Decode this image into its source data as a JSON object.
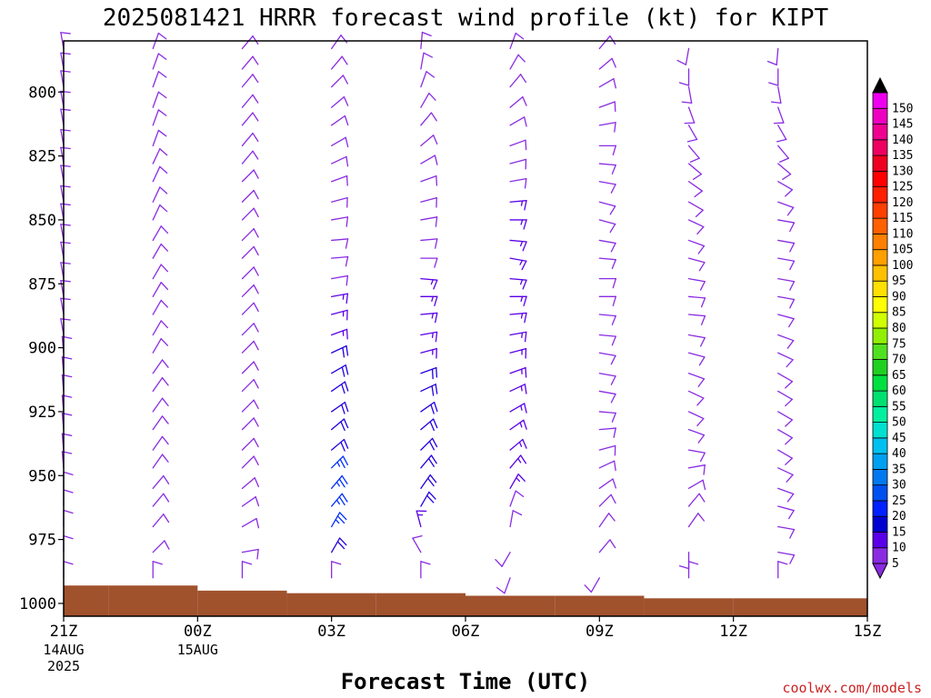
{
  "chart_data": {
    "type": "wind-barb profile",
    "title": "2025081421 HRRR forecast wind profile (kt) for KIPT",
    "xlabel": "Forecast Time (UTC)",
    "credit": "coolwx.com/models",
    "y_axis": {
      "direction": "inverted pressure (hPa)",
      "range": [
        1005,
        780
      ],
      "ticks": [
        800,
        825,
        850,
        875,
        900,
        925,
        950,
        975,
        1000
      ]
    },
    "x_axis": {
      "range_hours": [
        0,
        18
      ],
      "ticks": [
        {
          "hour": 0,
          "label": "21Z",
          "sub": [
            "14AUG",
            "2025"
          ]
        },
        {
          "hour": 3,
          "label": "00Z",
          "sub": [
            "15AUG"
          ]
        },
        {
          "hour": 6,
          "label": "03Z",
          "sub": []
        },
        {
          "hour": 9,
          "label": "06Z",
          "sub": []
        },
        {
          "hour": 12,
          "label": "09Z",
          "sub": []
        },
        {
          "hour": 15,
          "label": "12Z",
          "sub": []
        },
        {
          "hour": 18,
          "label": "15Z",
          "sub": []
        }
      ]
    },
    "levels_hpa": [
      1000,
      990,
      980,
      970,
      962,
      955,
      947,
      940,
      932,
      925,
      917,
      910,
      902,
      895,
      887,
      880,
      873,
      865,
      858,
      850,
      843,
      835,
      828,
      821,
      813,
      806,
      798,
      791,
      783
    ],
    "columns": [
      {
        "hour": 0,
        "surface_hpa": 993,
        "dir": [
          0,
          0,
          0,
          0,
          0,
          0,
          355,
          355,
          355,
          355,
          355,
          355,
          355,
          350,
          350,
          350,
          350,
          350,
          350,
          350,
          350,
          350,
          350,
          350,
          350,
          350,
          350,
          350,
          350
        ],
        "spd": [
          10,
          10,
          10,
          10,
          10,
          10,
          10,
          10,
          10,
          10,
          10,
          10,
          10,
          10,
          10,
          10,
          10,
          10,
          10,
          10,
          10,
          10,
          10,
          10,
          10,
          10,
          10,
          10,
          10
        ]
      },
      {
        "hour": 2,
        "surface_hpa": 993,
        "dir": [
          0,
          0,
          45,
          40,
          40,
          40,
          35,
          35,
          35,
          35,
          35,
          35,
          30,
          30,
          30,
          30,
          30,
          30,
          30,
          25,
          25,
          25,
          25,
          20,
          20,
          20,
          20,
          20,
          20
        ],
        "spd": [
          10,
          10,
          10,
          10,
          10,
          10,
          10,
          10,
          10,
          10,
          10,
          10,
          10,
          10,
          10,
          10,
          10,
          10,
          10,
          10,
          10,
          10,
          10,
          10,
          10,
          10,
          10,
          10,
          10
        ]
      },
      {
        "hour": 4,
        "surface_hpa": 995,
        "dir": [
          0,
          0,
          80,
          60,
          55,
          50,
          45,
          45,
          45,
          45,
          45,
          45,
          45,
          45,
          45,
          45,
          45,
          45,
          45,
          45,
          45,
          45,
          40,
          40,
          40,
          40,
          40,
          40,
          40
        ],
        "spd": [
          10,
          10,
          10,
          10,
          10,
          10,
          10,
          10,
          10,
          10,
          10,
          10,
          10,
          10,
          10,
          10,
          10,
          10,
          10,
          10,
          10,
          10,
          10,
          10,
          10,
          10,
          10,
          10,
          10
        ]
      },
      {
        "hour": 6,
        "surface_hpa": 996,
        "dir": [
          0,
          0,
          30,
          30,
          40,
          40,
          45,
          50,
          50,
          55,
          55,
          60,
          65,
          70,
          75,
          80,
          80,
          85,
          85,
          80,
          75,
          70,
          65,
          60,
          55,
          50,
          45,
          40,
          35
        ],
        "spd": [
          10,
          10,
          20,
          25,
          25,
          25,
          25,
          20,
          20,
          20,
          20,
          20,
          20,
          15,
          15,
          15,
          10,
          10,
          10,
          10,
          10,
          10,
          10,
          10,
          10,
          10,
          10,
          10,
          10
        ]
      },
      {
        "hour": 8,
        "surface_hpa": 996,
        "dir": [
          0,
          0,
          330,
          345,
          30,
          35,
          40,
          45,
          50,
          55,
          65,
          70,
          75,
          80,
          85,
          90,
          95,
          90,
          85,
          80,
          75,
          70,
          60,
          50,
          40,
          30,
          20,
          10,
          5
        ],
        "spd": [
          10,
          10,
          10,
          15,
          20,
          20,
          20,
          20,
          20,
          20,
          20,
          20,
          15,
          15,
          15,
          15,
          15,
          10,
          10,
          10,
          10,
          10,
          10,
          10,
          10,
          10,
          10,
          10,
          10
        ]
      },
      {
        "hour": 10,
        "surface_hpa": 997,
        "dir": [
          0,
          200,
          210,
          10,
          20,
          30,
          40,
          50,
          55,
          60,
          65,
          70,
          75,
          80,
          85,
          90,
          95,
          100,
          95,
          90,
          85,
          80,
          75,
          70,
          60,
          50,
          40,
          30,
          20
        ],
        "spd": [
          10,
          10,
          10,
          10,
          10,
          15,
          15,
          15,
          15,
          15,
          15,
          15,
          15,
          15,
          15,
          15,
          15,
          15,
          15,
          15,
          15,
          10,
          10,
          10,
          10,
          10,
          10,
          10,
          10
        ]
      },
      {
        "hour": 12,
        "surface_hpa": 997,
        "dir": [
          0,
          210,
          40,
          35,
          45,
          55,
          65,
          75,
          85,
          95,
          100,
          100,
          100,
          95,
          95,
          90,
          90,
          95,
          100,
          105,
          105,
          100,
          95,
          90,
          80,
          70,
          60,
          50,
          40
        ],
        "spd": [
          10,
          10,
          10,
          10,
          10,
          10,
          10,
          10,
          10,
          10,
          10,
          10,
          10,
          10,
          10,
          10,
          10,
          10,
          10,
          10,
          10,
          10,
          10,
          10,
          10,
          10,
          10,
          10,
          10
        ]
      },
      {
        "hour": 14,
        "surface_hpa": 998,
        "dir": [
          0,
          0,
          180,
          35,
          40,
          60,
          80,
          100,
          110,
          115,
          115,
          110,
          105,
          100,
          95,
          95,
          100,
          105,
          110,
          115,
          120,
          125,
          130,
          140,
          150,
          160,
          170,
          180,
          190
        ],
        "spd": [
          10,
          10,
          10,
          10,
          10,
          10,
          10,
          10,
          10,
          10,
          10,
          10,
          10,
          10,
          10,
          10,
          10,
          10,
          10,
          10,
          10,
          10,
          10,
          10,
          10,
          10,
          10,
          10,
          10
        ]
      },
      {
        "hour": 16,
        "surface_hpa": 998,
        "dir": [
          0,
          0,
          100,
          100,
          105,
          110,
          115,
          120,
          120,
          120,
          120,
          120,
          115,
          110,
          105,
          100,
          100,
          100,
          100,
          100,
          110,
          120,
          130,
          140,
          150,
          160,
          170,
          180,
          185
        ],
        "spd": [
          10,
          10,
          10,
          10,
          10,
          10,
          10,
          10,
          10,
          10,
          10,
          10,
          10,
          10,
          10,
          10,
          10,
          10,
          10,
          10,
          10,
          10,
          10,
          10,
          10,
          10,
          10,
          10,
          10
        ]
      }
    ],
    "colorbar": {
      "labels": [
        "5",
        "10",
        "15",
        "20",
        "25",
        "30",
        "35",
        "40",
        "45",
        "50",
        "55",
        "60",
        "65",
        "70",
        "75",
        "80",
        "85",
        "90",
        "95",
        "100",
        "105",
        "110",
        "115",
        "120",
        "125",
        "130",
        "135",
        "140",
        "145",
        "150"
      ],
      "colors": [
        "#8a2be2",
        "#5a00e8",
        "#0000d0",
        "#0020ff",
        "#0050f0",
        "#0078f0",
        "#00a0f0",
        "#00c0f0",
        "#00e0d0",
        "#00f0a0",
        "#00e070",
        "#00e040",
        "#20d020",
        "#50e020",
        "#90f000",
        "#d0ff00",
        "#ffff00",
        "#ffe000",
        "#ffc000",
        "#ffa000",
        "#ff8000",
        "#ff6000",
        "#ff4000",
        "#ff2000",
        "#ff0000",
        "#ee0020",
        "#ee0060",
        "#ee0090",
        "#ee00c0",
        "#ee00ee"
      ],
      "top_arrow_color": "#000000",
      "bottom_arrow_color": "#8a2be2"
    },
    "ground_color": "#a0522d",
    "barb_colors": {
      "le10": "#8a2be2",
      "le15": "#5a00e8",
      "le20": "#2000e0",
      "gt20": "#0030ff"
    }
  }
}
